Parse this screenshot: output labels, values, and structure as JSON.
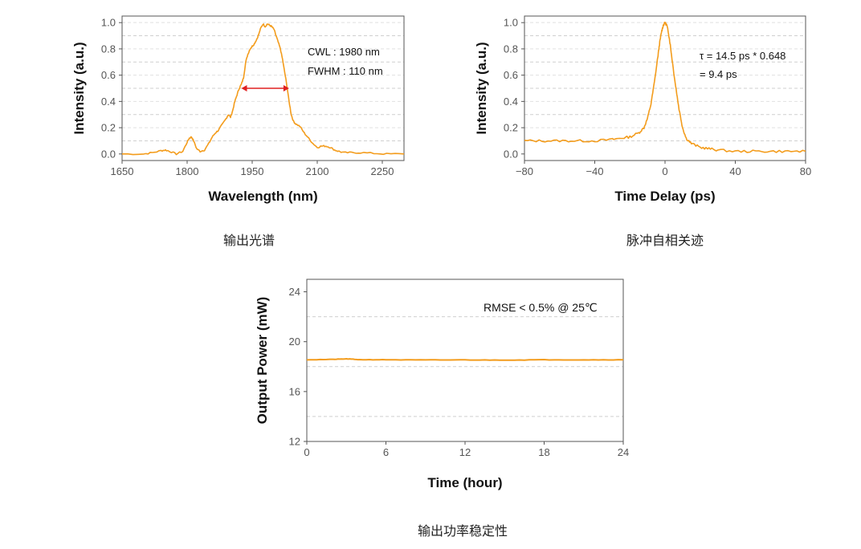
{
  "chart_data": [
    {
      "type": "line",
      "caption": "输出光谱",
      "xlabel": "Wavelength (nm)",
      "ylabel": "Intensity (a.u.)",
      "xlim": [
        1650,
        2300
      ],
      "ylim": [
        -0.05,
        1.05
      ],
      "xticks": [
        1650,
        1800,
        1950,
        2100,
        2250
      ],
      "xtick_labels": [
        "1650",
        "1800",
        "1950",
        "2100",
        "2250"
      ],
      "yticks": [
        0.0,
        0.2,
        0.4,
        0.6,
        0.8,
        1.0
      ],
      "ytick_labels": [
        "0.0",
        "0.2",
        "0.4",
        "0.6",
        "0.8",
        "1.0"
      ],
      "grid": true,
      "color": "#F39C1C",
      "annotations": [
        "CWL : 1980 nm",
        "FWHM : 110 nm"
      ],
      "fwhm_marker": {
        "x": [
          1925,
          2035
        ],
        "y": 0.5,
        "color": "#E02020"
      },
      "series": [
        {
          "x": [
            1650,
            1700,
            1720,
            1740,
            1750,
            1760,
            1775,
            1790,
            1800,
            1805,
            1810,
            1815,
            1822,
            1830,
            1840,
            1850,
            1858,
            1865,
            1872,
            1880,
            1890,
            1895,
            1900,
            1905,
            1910,
            1915,
            1920,
            1925,
            1930,
            1935,
            1940,
            1945,
            1950,
            1955,
            1960,
            1965,
            1970,
            1975,
            1980,
            1985,
            1990,
            1995,
            2000,
            2005,
            2010,
            2015,
            2020,
            2025,
            2030,
            2035,
            2040,
            2045,
            2050,
            2060,
            2070,
            2080,
            2090,
            2100,
            2110,
            2120,
            2130,
            2140,
            2150,
            2160,
            2180,
            2200,
            2230,
            2260,
            2300
          ],
          "y": [
            0.0,
            0.0,
            0.01,
            0.025,
            0.03,
            0.02,
            0.0,
            0.02,
            0.09,
            0.12,
            0.13,
            0.1,
            0.04,
            0.02,
            0.03,
            0.08,
            0.13,
            0.16,
            0.18,
            0.22,
            0.27,
            0.3,
            0.28,
            0.33,
            0.4,
            0.45,
            0.5,
            0.53,
            0.58,
            0.7,
            0.76,
            0.8,
            0.82,
            0.84,
            0.87,
            0.91,
            0.96,
            0.99,
            0.97,
            0.99,
            0.98,
            0.97,
            0.95,
            0.9,
            0.85,
            0.8,
            0.72,
            0.62,
            0.52,
            0.4,
            0.3,
            0.25,
            0.23,
            0.21,
            0.16,
            0.12,
            0.08,
            0.05,
            0.06,
            0.06,
            0.05,
            0.03,
            0.02,
            0.01,
            0.01,
            0.01,
            0.005,
            0.0,
            0.0
          ]
        }
      ]
    },
    {
      "type": "line",
      "caption": "脉冲自相关迹",
      "xlabel": "Time Delay (ps)",
      "ylabel": "Intensity (a.u.)",
      "xlim": [
        -80,
        80
      ],
      "ylim": [
        -0.05,
        1.05
      ],
      "xticks": [
        -80,
        -40,
        0,
        40,
        80
      ],
      "xtick_labels": [
        "−80",
        "−40",
        "0",
        "40",
        "80"
      ],
      "yticks": [
        0.0,
        0.2,
        0.4,
        0.6,
        0.8,
        1.0
      ],
      "ytick_labels": [
        "0.0",
        "0.2",
        "0.4",
        "0.6",
        "0.8",
        "1.0"
      ],
      "grid": true,
      "color": "#F39C1C",
      "annotations": [
        "τ = 14.5 ps * 0.648",
        " = 9.4 ps"
      ],
      "series": [
        {
          "x": [
            -80,
            -70,
            -60,
            -50,
            -40,
            -30,
            -25,
            -20,
            -15,
            -12,
            -10,
            -8,
            -6,
            -4,
            -3,
            -2,
            -1,
            0,
            1,
            2,
            3,
            4,
            6,
            8,
            10,
            12,
            15,
            20,
            25,
            30,
            40,
            50,
            60,
            70,
            80
          ],
          "y": [
            0.1,
            0.1,
            0.1,
            0.1,
            0.1,
            0.11,
            0.12,
            0.13,
            0.16,
            0.2,
            0.27,
            0.38,
            0.55,
            0.75,
            0.85,
            0.93,
            0.98,
            1.0,
            0.98,
            0.92,
            0.83,
            0.72,
            0.52,
            0.34,
            0.2,
            0.12,
            0.08,
            0.05,
            0.04,
            0.03,
            0.02,
            0.02,
            0.02,
            0.02,
            0.02
          ]
        }
      ]
    },
    {
      "type": "line",
      "caption": "输出功率稳定性",
      "xlabel": "Time (hour)",
      "ylabel": "Output Power (mW)",
      "xlim": [
        0,
        24
      ],
      "ylim": [
        12,
        25
      ],
      "xticks": [
        0,
        6,
        12,
        18,
        24
      ],
      "xtick_labels": [
        "0",
        "6",
        "12",
        "18",
        "24"
      ],
      "yticks": [
        12,
        16,
        20,
        24
      ],
      "ytick_labels": [
        "12",
        "16",
        "20",
        "24"
      ],
      "gridlines": [
        14,
        18,
        22
      ],
      "color": "#F39C1C",
      "annotations": [
        "RMSE < 0.5% @ 25℃"
      ],
      "series": [
        {
          "x": [
            0,
            2,
            3,
            4,
            6,
            9,
            12,
            15,
            18,
            21,
            24
          ],
          "y": [
            18.55,
            18.58,
            18.62,
            18.56,
            18.55,
            18.53,
            18.54,
            18.52,
            18.55,
            18.54,
            18.55
          ]
        }
      ]
    }
  ]
}
